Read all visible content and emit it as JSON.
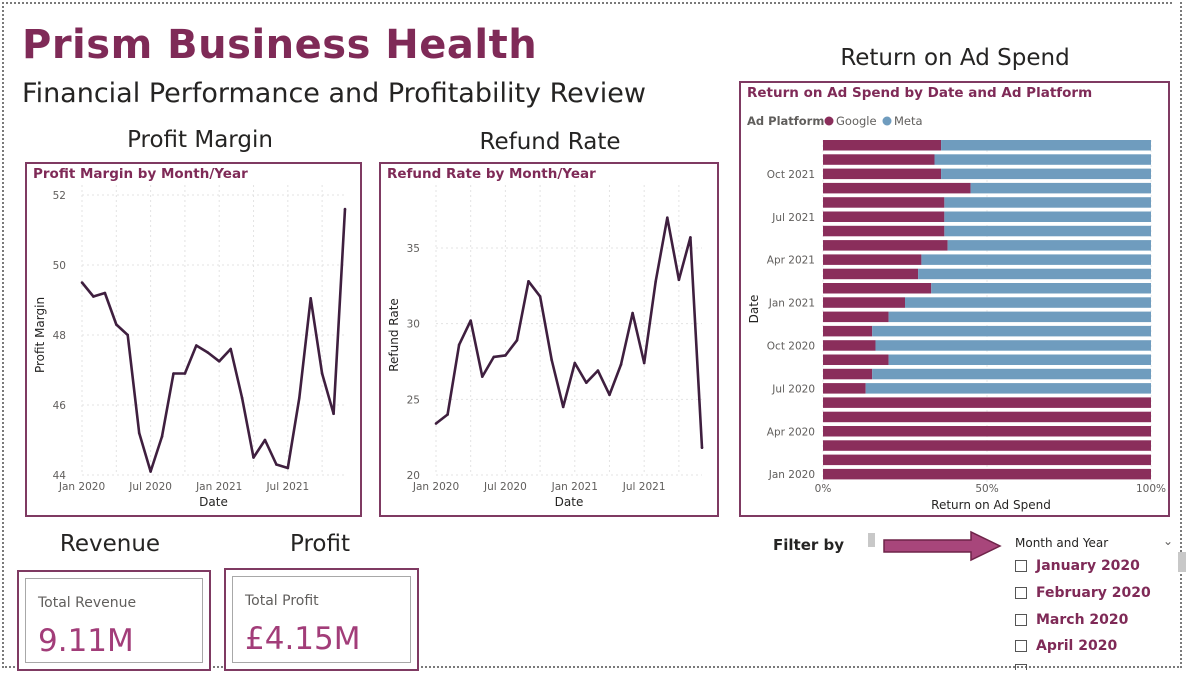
{
  "header": {
    "title": "Prism Business Health",
    "subtitle": "Financial Performance and Profitability Review"
  },
  "sections": {
    "profit_margin": "Profit Margin",
    "refund_rate": "Refund Rate",
    "roas": "Return on Ad Spend",
    "revenue": "Revenue",
    "profit": "Profit"
  },
  "colors": {
    "brand": "#7f2a57",
    "line": "#3f1f3f",
    "google": "#8a2e5b",
    "meta": "#6f9cbe",
    "kpi_value": "#a23d79"
  },
  "kpis": {
    "revenue": {
      "label": "Total Revenue",
      "value": "9.11M"
    },
    "profit": {
      "label": "Total Profit",
      "value": "£4.15M"
    }
  },
  "filter": {
    "label": "Filter by",
    "slicer_title": "Month and Year",
    "chevron": "chevron-down-icon",
    "items": [
      "January 2020",
      "February 2020",
      "March 2020",
      "April 2020"
    ]
  },
  "chart_data": [
    {
      "type": "line",
      "title": "Profit Margin by Month/Year",
      "xlabel": "Date",
      "ylabel": "Profit Margin",
      "x_ticks": [
        "Jan 2020",
        "Jul 2020",
        "Jan 2021",
        "Jul 2021"
      ],
      "y_ticks": [
        44,
        46,
        48,
        50,
        52
      ],
      "ylim": [
        44,
        52
      ],
      "grid": true,
      "series": [
        {
          "values": [
            49.5,
            49.1,
            49.2,
            48.3,
            48.0,
            45.2,
            44.1,
            45.1,
            46.9,
            46.9,
            47.7,
            47.5,
            47.25,
            47.6,
            46.2,
            44.5,
            45.0,
            44.3,
            44.2,
            46.2,
            49.05,
            46.9,
            45.75,
            51.6
          ]
        }
      ]
    },
    {
      "type": "line",
      "title": "Refund Rate by Month/Year",
      "xlabel": "Date",
      "ylabel": "Refund Rate",
      "x_ticks": [
        "Jan 2020",
        "Jul 2020",
        "Jan 2021",
        "Jul 2021"
      ],
      "y_ticks": [
        20,
        25,
        30,
        35
      ],
      "ylim": [
        20,
        38.5
      ],
      "grid": true,
      "series": [
        {
          "values": [
            23.4,
            24.0,
            28.6,
            30.2,
            26.5,
            27.8,
            27.9,
            28.9,
            32.8,
            31.8,
            27.6,
            24.5,
            27.4,
            26.1,
            26.9,
            25.3,
            27.3,
            30.7,
            27.4,
            32.8,
            37.0,
            32.9,
            35.7,
            21.8
          ]
        }
      ]
    },
    {
      "type": "bar",
      "orientation": "horizontal",
      "stacked": "100%",
      "title": "Return on Ad Spend by Date and Ad Platform",
      "legend_title": "Ad Platform",
      "legend_position": "top-left",
      "xlabel": "Return on Ad Spend",
      "ylabel": "Date",
      "x_ticks": [
        "0%",
        "50%",
        "100%"
      ],
      "y_ticks": [
        "Oct 2021",
        "Jul 2021",
        "Apr 2021",
        "Jan 2021",
        "Oct 2020",
        "Jul 2020",
        "Apr 2020",
        "Jan 2020"
      ],
      "categories": [
        "Dec 2021",
        "Nov 2021",
        "Oct 2021",
        "Sep 2021",
        "Aug 2021",
        "Jul 2021",
        "Jun 2021",
        "May 2021",
        "Apr 2021",
        "Mar 2021",
        "Feb 2021",
        "Jan 2021",
        "Dec 2020",
        "Nov 2020",
        "Oct 2020",
        "Sep 2020",
        "Aug 2020",
        "Jul 2020",
        "Jun 2020",
        "May 2020",
        "Apr 2020",
        "Mar 2020",
        "Feb 2020",
        "Jan 2020"
      ],
      "series": [
        {
          "name": "Google",
          "values": [
            36,
            34,
            36,
            45,
            37,
            37,
            37,
            38,
            30,
            29,
            33,
            25,
            20,
            15,
            16,
            20,
            15,
            13,
            100,
            100,
            100,
            100,
            100,
            100
          ]
        },
        {
          "name": "Meta",
          "values": [
            64,
            66,
            64,
            55,
            63,
            63,
            63,
            62,
            70,
            71,
            67,
            75,
            80,
            85,
            84,
            80,
            85,
            87,
            0,
            0,
            0,
            0,
            0,
            0
          ]
        }
      ]
    }
  ]
}
